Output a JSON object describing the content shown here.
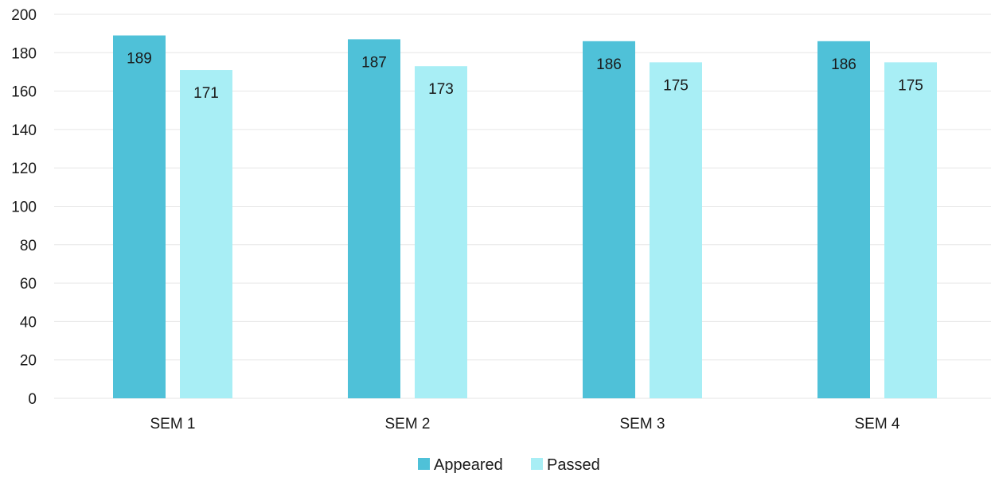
{
  "chart_data": {
    "type": "bar",
    "categories": [
      "SEM 1",
      "SEM 2",
      "SEM 3",
      "SEM 4"
    ],
    "series": [
      {
        "name": "Appeared",
        "values": [
          189,
          187,
          186,
          186
        ],
        "color": "#4fc1d8"
      },
      {
        "name": "Passed",
        "values": [
          171,
          173,
          175,
          175
        ],
        "color": "#a8eef5"
      }
    ],
    "ylim": [
      0,
      200
    ],
    "yticks": [
      0,
      20,
      40,
      60,
      80,
      100,
      120,
      140,
      160,
      180,
      200
    ],
    "grid": true,
    "legend_position": "bottom"
  }
}
